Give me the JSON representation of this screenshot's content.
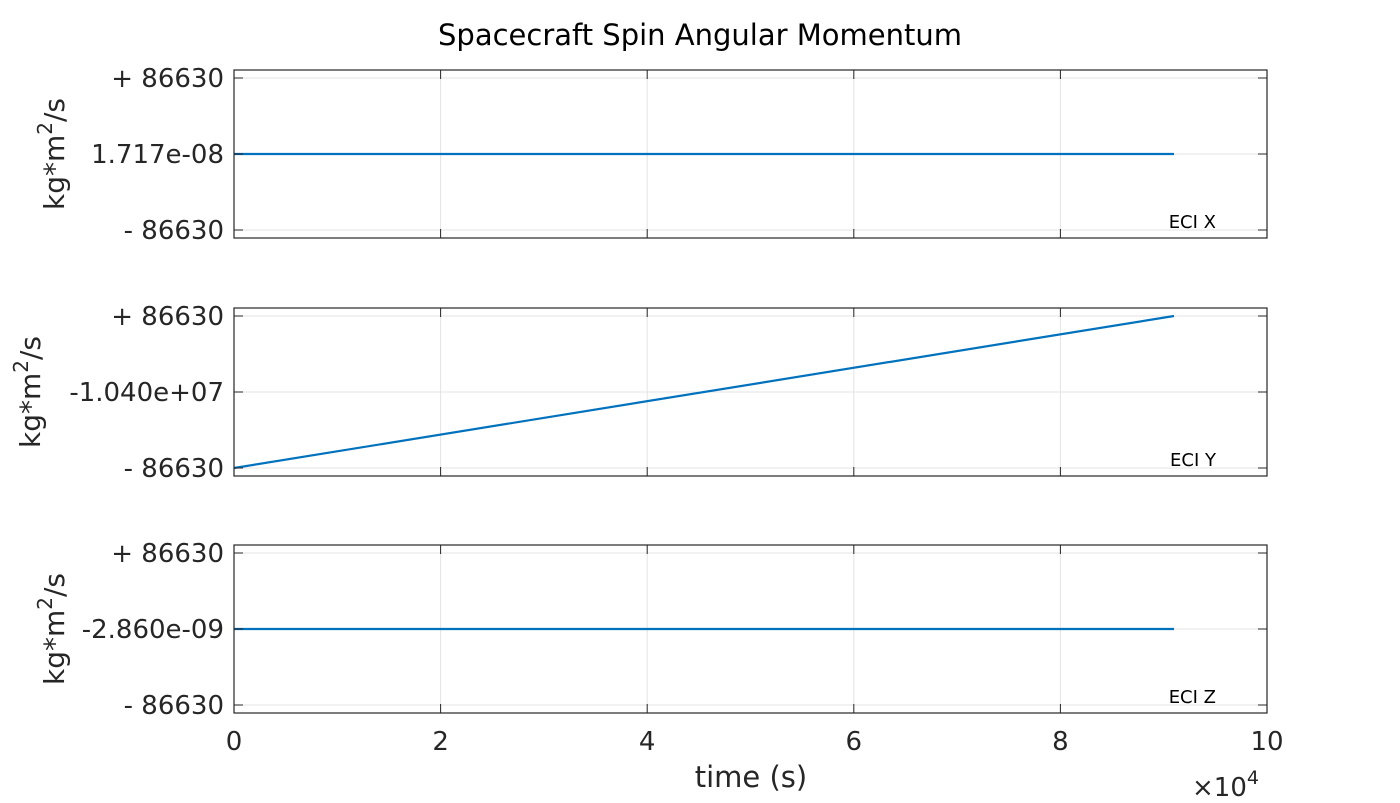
{
  "chart_data": {
    "type": "line",
    "title": "Spacecraft Spin Angular Momentum",
    "xlabel": "time (s)",
    "xlim": [
      0,
      100000
    ],
    "xticks": [
      0,
      20000,
      40000,
      60000,
      80000,
      100000
    ],
    "xtick_labels": [
      "0",
      "2",
      "4",
      "6",
      "8",
      "10"
    ],
    "x_multiplier": {
      "base": "×10",
      "exp": "4"
    },
    "grid": true,
    "line_color": "#0072BD",
    "panels": [
      {
        "ylabel": {
          "pre": "kg*m",
          "sup": "2",
          "post": "/s"
        },
        "tick_labels": [
          "+ 86630",
          "1.717e-08",
          "- 86630"
        ],
        "annotation": "ECI X",
        "series": {
          "x": [
            0,
            91000
          ],
          "y": [
            1.717e-08,
            1.717e-08
          ]
        },
        "ylim": [
          -86630,
          86630
        ]
      },
      {
        "ylabel": {
          "pre": "kg*m",
          "sup": "2",
          "post": "/s"
        },
        "tick_labels": [
          "+ 86630",
          "-1.040e+07",
          "- 86630"
        ],
        "annotation": "ECI Y",
        "series": {
          "x": [
            0,
            91000
          ],
          "y": [
            -10486630,
            -10313370
          ]
        },
        "ylim": [
          -10486630,
          -10313370
        ]
      },
      {
        "ylabel": {
          "pre": "kg*m",
          "sup": "2",
          "post": "/s"
        },
        "tick_labels": [
          "+ 86630",
          "-2.860e-09",
          "- 86630"
        ],
        "annotation": "ECI Z",
        "series": {
          "x": [
            0,
            91000
          ],
          "y": [
            -2.86e-09,
            -2.86e-09
          ]
        },
        "ylim": [
          -86630,
          86630
        ]
      }
    ]
  }
}
